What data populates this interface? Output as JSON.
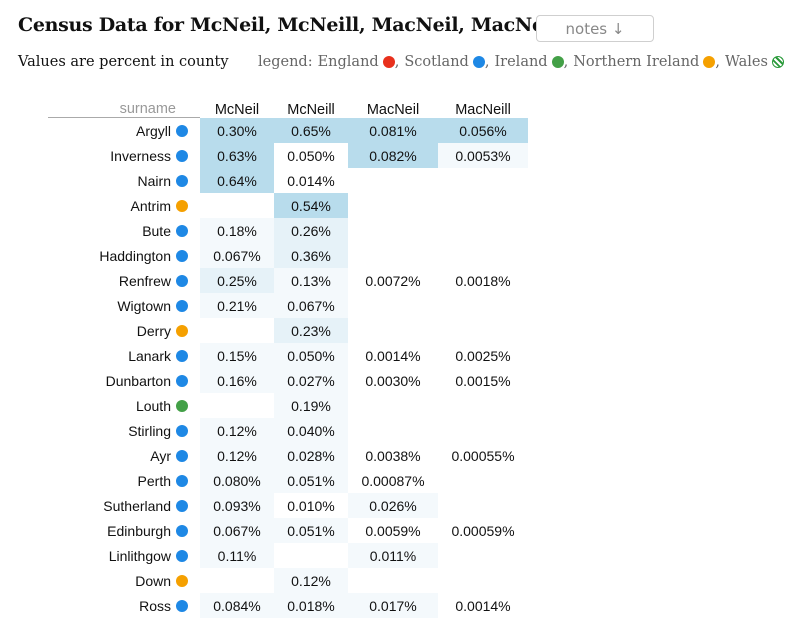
{
  "title": "Census Data for McNeil, McNeill, MacNeil, MacNeill",
  "notes_button": "notes ↓",
  "subtitle": "Values are percent in county",
  "legend": {
    "prefix": "legend:",
    "items": [
      {
        "label": "England",
        "color": "#e8301c"
      },
      {
        "label": "Scotland",
        "color": "#1e88e5"
      },
      {
        "label": "Ireland",
        "color": "#43a047"
      },
      {
        "label": "Northern Ireland",
        "color": "#f5a000"
      },
      {
        "label": "Wales",
        "color": "striped"
      }
    ]
  },
  "table": {
    "surname_header": "surname",
    "columns": [
      "McNeil",
      "McNeill",
      "MacNeil",
      "MacNeill"
    ],
    "rows": [
      {
        "name": "Argyll",
        "region": "Scotland",
        "values": [
          "0.30%",
          "0.65%",
          "0.081%",
          "0.056%"
        ],
        "shade": [
          3,
          3,
          3,
          3
        ]
      },
      {
        "name": "Inverness",
        "region": "Scotland",
        "values": [
          "0.63%",
          "0.050%",
          "0.082%",
          "0.0053%"
        ],
        "shade": [
          3,
          0,
          3,
          1
        ]
      },
      {
        "name": "Nairn",
        "region": "Scotland",
        "values": [
          "0.64%",
          "0.014%",
          "",
          ""
        ],
        "shade": [
          3,
          0,
          0,
          0
        ]
      },
      {
        "name": "Antrim",
        "region": "Northern Ireland",
        "values": [
          "",
          "0.54%",
          "",
          ""
        ],
        "shade": [
          0,
          3,
          0,
          0
        ]
      },
      {
        "name": "Bute",
        "region": "Scotland",
        "values": [
          "0.18%",
          "0.26%",
          "",
          ""
        ],
        "shade": [
          1,
          2,
          0,
          0
        ]
      },
      {
        "name": "Haddington",
        "region": "Scotland",
        "values": [
          "0.067%",
          "0.36%",
          "",
          ""
        ],
        "shade": [
          1,
          2,
          0,
          0
        ]
      },
      {
        "name": "Renfrew",
        "region": "Scotland",
        "values": [
          "0.25%",
          "0.13%",
          "0.0072%",
          "0.0018%"
        ],
        "shade": [
          2,
          1,
          0,
          0
        ]
      },
      {
        "name": "Wigtown",
        "region": "Scotland",
        "values": [
          "0.21%",
          "0.067%",
          "",
          ""
        ],
        "shade": [
          1,
          1,
          0,
          0
        ]
      },
      {
        "name": "Derry",
        "region": "Northern Ireland",
        "values": [
          "",
          "0.23%",
          "",
          ""
        ],
        "shade": [
          0,
          2,
          0,
          0
        ]
      },
      {
        "name": "Lanark",
        "region": "Scotland",
        "values": [
          "0.15%",
          "0.050%",
          "0.0014%",
          "0.0025%"
        ],
        "shade": [
          1,
          1,
          0,
          0
        ]
      },
      {
        "name": "Dunbarton",
        "region": "Scotland",
        "values": [
          "0.16%",
          "0.027%",
          "0.0030%",
          "0.0015%"
        ],
        "shade": [
          1,
          1,
          0,
          0
        ]
      },
      {
        "name": "Louth",
        "region": "Ireland",
        "values": [
          "",
          "0.19%",
          "",
          ""
        ],
        "shade": [
          0,
          1,
          0,
          0
        ]
      },
      {
        "name": "Stirling",
        "region": "Scotland",
        "values": [
          "0.12%",
          "0.040%",
          "",
          ""
        ],
        "shade": [
          1,
          1,
          0,
          0
        ]
      },
      {
        "name": "Ayr",
        "region": "Scotland",
        "values": [
          "0.12%",
          "0.028%",
          "0.0038%",
          "0.00055%"
        ],
        "shade": [
          1,
          1,
          0,
          0
        ]
      },
      {
        "name": "Perth",
        "region": "Scotland",
        "values": [
          "0.080%",
          "0.051%",
          "0.00087%",
          ""
        ],
        "shade": [
          1,
          1,
          0,
          0
        ]
      },
      {
        "name": "Sutherland",
        "region": "Scotland",
        "values": [
          "0.093%",
          "0.010%",
          "0.026%",
          ""
        ],
        "shade": [
          1,
          0,
          1,
          0
        ]
      },
      {
        "name": "Edinburgh",
        "region": "Scotland",
        "values": [
          "0.067%",
          "0.051%",
          "0.0059%",
          "0.00059%"
        ],
        "shade": [
          1,
          1,
          0,
          0
        ]
      },
      {
        "name": "Linlithgow",
        "region": "Scotland",
        "values": [
          "0.11%",
          "",
          "0.011%",
          ""
        ],
        "shade": [
          1,
          0,
          1,
          0
        ]
      },
      {
        "name": "Down",
        "region": "Northern Ireland",
        "values": [
          "",
          "0.12%",
          "",
          ""
        ],
        "shade": [
          0,
          1,
          0,
          0
        ]
      },
      {
        "name": "Ross",
        "region": "Scotland",
        "values": [
          "0.084%",
          "0.018%",
          "0.017%",
          "0.0014%"
        ],
        "shade": [
          1,
          1,
          1,
          0
        ]
      }
    ]
  }
}
